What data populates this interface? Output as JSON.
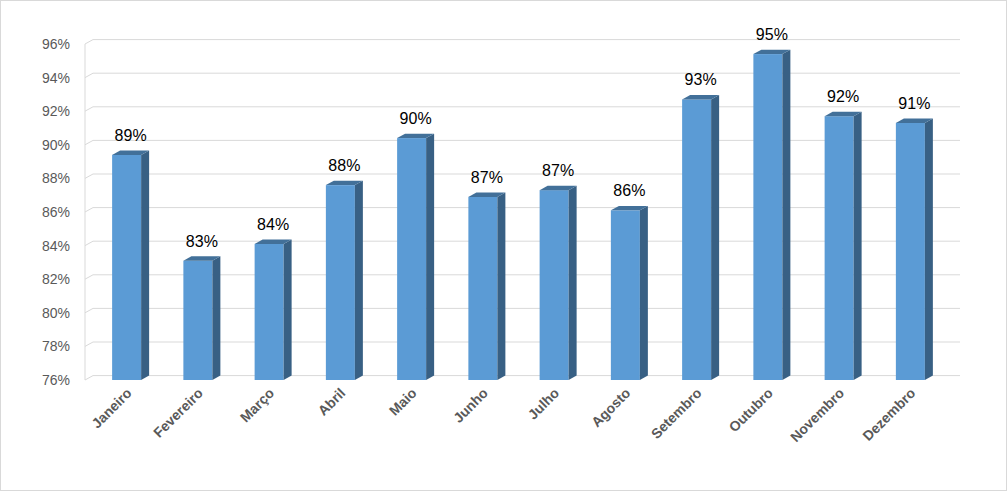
{
  "chart_data": {
    "type": "bar",
    "categories": [
      "Janeiro",
      "Fevereiro",
      "Março",
      "Abril",
      "Maio",
      "Junho",
      "Julho",
      "Agosto",
      "Setembro",
      "Outubro",
      "Novembro",
      "Dezembro"
    ],
    "values": [
      89.4,
      83.1,
      84.1,
      87.6,
      90.4,
      86.9,
      87.3,
      86.1,
      92.7,
      95.4,
      91.7,
      91.3
    ],
    "value_labels": [
      "89%",
      "83%",
      "84%",
      "88%",
      "90%",
      "87%",
      "87%",
      "86%",
      "93%",
      "95%",
      "92%",
      "91%"
    ],
    "color": "#5b9bd5",
    "ylim": [
      76,
      96
    ],
    "yticks": [
      {
        "value": 76,
        "label": "76%"
      },
      {
        "value": 78,
        "label": "78%"
      },
      {
        "value": 80,
        "label": "80%"
      },
      {
        "value": 82,
        "label": "82%"
      },
      {
        "value": 84,
        "label": "84%"
      },
      {
        "value": 86,
        "label": "86%"
      },
      {
        "value": 88,
        "label": "88%"
      },
      {
        "value": 90,
        "label": "90%"
      },
      {
        "value": 92,
        "label": "92%"
      },
      {
        "value": 94,
        "label": "94%"
      },
      {
        "value": 96,
        "label": "96%"
      }
    ],
    "grid": true,
    "data_labels": true
  }
}
